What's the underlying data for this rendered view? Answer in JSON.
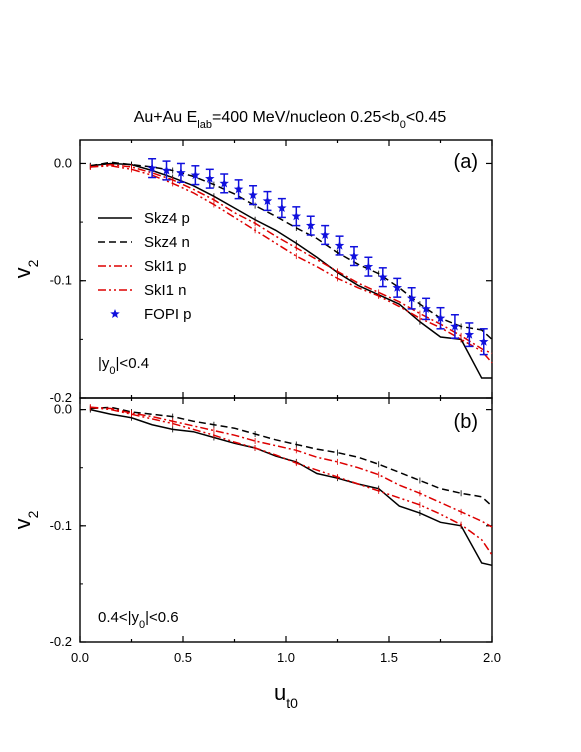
{
  "figure": {
    "title_main": "Au+Au E",
    "title_sub": "lab",
    "title_rest": "=400 MeV/nucleon 0.25<b",
    "title_sub2": "0",
    "title_end": "<0.45"
  },
  "chart_data": [
    {
      "type": "line",
      "panel_label": "(a)",
      "annotation": {
        "pre": "|y",
        "sub": "0",
        "post": "|<0.4"
      },
      "xlabel": "",
      "ylabel": "v",
      "ylabel_sub": "2",
      "xlim": [
        0.0,
        2.0
      ],
      "ylim": [
        -0.2,
        0.02
      ],
      "yticks": [
        0.0,
        -0.1,
        -0.2
      ],
      "ytick_labels": [
        "0.0",
        "-0.1",
        "-0.2"
      ],
      "x": [
        0.05,
        0.15,
        0.25,
        0.35,
        0.45,
        0.55,
        0.65,
        0.75,
        0.85,
        0.95,
        1.05,
        1.15,
        1.25,
        1.35,
        1.45,
        1.55,
        1.65,
        1.75,
        1.85,
        1.95,
        2.0
      ],
      "series": [
        {
          "name": "Skz4  p",
          "color": "#000000",
          "dash": "solid",
          "values": [
            -0.002,
            0.0,
            -0.001,
            -0.006,
            -0.012,
            -0.019,
            -0.028,
            -0.038,
            -0.048,
            -0.057,
            -0.068,
            -0.08,
            -0.093,
            -0.104,
            -0.112,
            -0.12,
            -0.135,
            -0.148,
            -0.15,
            -0.183,
            -0.183
          ]
        },
        {
          "name": "Skz4  n",
          "color": "#000000",
          "dash": "dash",
          "values": [
            -0.002,
            0.001,
            -0.001,
            -0.003,
            -0.006,
            -0.011,
            -0.018,
            -0.026,
            -0.036,
            -0.045,
            -0.055,
            -0.064,
            -0.076,
            -0.086,
            -0.094,
            -0.106,
            -0.12,
            -0.132,
            -0.139,
            -0.142,
            -0.15
          ]
        },
        {
          "name": "SkI1  p",
          "color": "#dd0000",
          "dash": "dashdot",
          "values": [
            -0.003,
            -0.001,
            -0.003,
            -0.008,
            -0.014,
            -0.022,
            -0.031,
            -0.042,
            -0.051,
            -0.062,
            -0.072,
            -0.082,
            -0.092,
            -0.102,
            -0.11,
            -0.118,
            -0.128,
            -0.137,
            -0.147,
            -0.158,
            -0.162
          ]
        },
        {
          "name": "SkI1  n",
          "color": "#dd0000",
          "dash": "dashdotdot",
          "values": [
            -0.003,
            -0.002,
            -0.005,
            -0.01,
            -0.017,
            -0.025,
            -0.035,
            -0.046,
            -0.057,
            -0.068,
            -0.079,
            -0.088,
            -0.098,
            -0.106,
            -0.113,
            -0.122,
            -0.132,
            -0.14,
            -0.15,
            -0.16,
            -0.17
          ]
        }
      ],
      "fopi": {
        "name": "FOPI p",
        "color": "#1010dd",
        "x": [
          0.35,
          0.42,
          0.49,
          0.56,
          0.63,
          0.7,
          0.77,
          0.84,
          0.91,
          0.98,
          1.05,
          1.12,
          1.19,
          1.26,
          1.33,
          1.4,
          1.47,
          1.54,
          1.61,
          1.68,
          1.75,
          1.82,
          1.89,
          1.96
        ],
        "y": [
          -0.004,
          -0.006,
          -0.008,
          -0.01,
          -0.013,
          -0.017,
          -0.022,
          -0.027,
          -0.032,
          -0.038,
          -0.045,
          -0.053,
          -0.061,
          -0.07,
          -0.079,
          -0.088,
          -0.097,
          -0.106,
          -0.115,
          -0.124,
          -0.132,
          -0.139,
          -0.146,
          -0.152
        ],
        "err": [
          0.008,
          0.008,
          0.008,
          0.008,
          0.008,
          0.008,
          0.008,
          0.008,
          0.008,
          0.008,
          0.008,
          0.008,
          0.008,
          0.008,
          0.008,
          0.008,
          0.008,
          0.008,
          0.009,
          0.009,
          0.009,
          0.01,
          0.01,
          0.011
        ]
      },
      "legend": "upper-left"
    },
    {
      "type": "line",
      "panel_label": "(b)",
      "annotation": {
        "pre": "0.4<|y",
        "sub": "0",
        "post": "|<0.6"
      },
      "xlabel": "u",
      "xlabel_sub": "t0",
      "ylabel": "v",
      "ylabel_sub": "2",
      "xlim": [
        0.0,
        2.0
      ],
      "ylim": [
        -0.2,
        0.01
      ],
      "xticks": [
        0.0,
        0.5,
        1.0,
        1.5,
        2.0
      ],
      "xtick_labels": [
        "0.0",
        "0.5",
        "1.0",
        "1.5",
        "2.0"
      ],
      "yticks": [
        0.0,
        -0.1,
        -0.2
      ],
      "ytick_labels": [
        "0.0",
        "-0.1",
        "-0.2"
      ],
      "x": [
        0.05,
        0.15,
        0.25,
        0.35,
        0.45,
        0.55,
        0.65,
        0.75,
        0.85,
        0.95,
        1.05,
        1.15,
        1.25,
        1.35,
        1.45,
        1.55,
        1.65,
        1.75,
        1.85,
        1.95,
        2.0
      ],
      "series": [
        {
          "name": "Skz4  p",
          "color": "#000000",
          "dash": "solid",
          "values": [
            0.0,
            -0.004,
            -0.007,
            -0.013,
            -0.017,
            -0.019,
            -0.024,
            -0.029,
            -0.033,
            -0.04,
            -0.045,
            -0.055,
            -0.059,
            -0.064,
            -0.068,
            -0.083,
            -0.089,
            -0.097,
            -0.1,
            -0.132,
            -0.134
          ]
        },
        {
          "name": "Skz4  n",
          "color": "#000000",
          "dash": "dash",
          "values": [
            0.001,
            0.002,
            -0.002,
            -0.004,
            -0.006,
            -0.01,
            -0.013,
            -0.016,
            -0.021,
            -0.026,
            -0.03,
            -0.034,
            -0.037,
            -0.041,
            -0.047,
            -0.054,
            -0.061,
            -0.068,
            -0.072,
            -0.075,
            -0.083
          ]
        },
        {
          "name": "SkI1  p",
          "color": "#dd0000",
          "dash": "dashdot",
          "values": [
            0.002,
            0.001,
            -0.003,
            -0.006,
            -0.01,
            -0.014,
            -0.018,
            -0.022,
            -0.027,
            -0.031,
            -0.035,
            -0.041,
            -0.045,
            -0.05,
            -0.056,
            -0.065,
            -0.072,
            -0.08,
            -0.088,
            -0.096,
            -0.101
          ]
        },
        {
          "name": "SkI1  n",
          "color": "#dd0000",
          "dash": "dashdotdot",
          "values": [
            0.002,
            0.0,
            -0.004,
            -0.008,
            -0.012,
            -0.017,
            -0.022,
            -0.028,
            -0.033,
            -0.039,
            -0.046,
            -0.052,
            -0.058,
            -0.064,
            -0.07,
            -0.076,
            -0.082,
            -0.09,
            -0.099,
            -0.112,
            -0.125
          ]
        }
      ],
      "legend": "none"
    }
  ]
}
